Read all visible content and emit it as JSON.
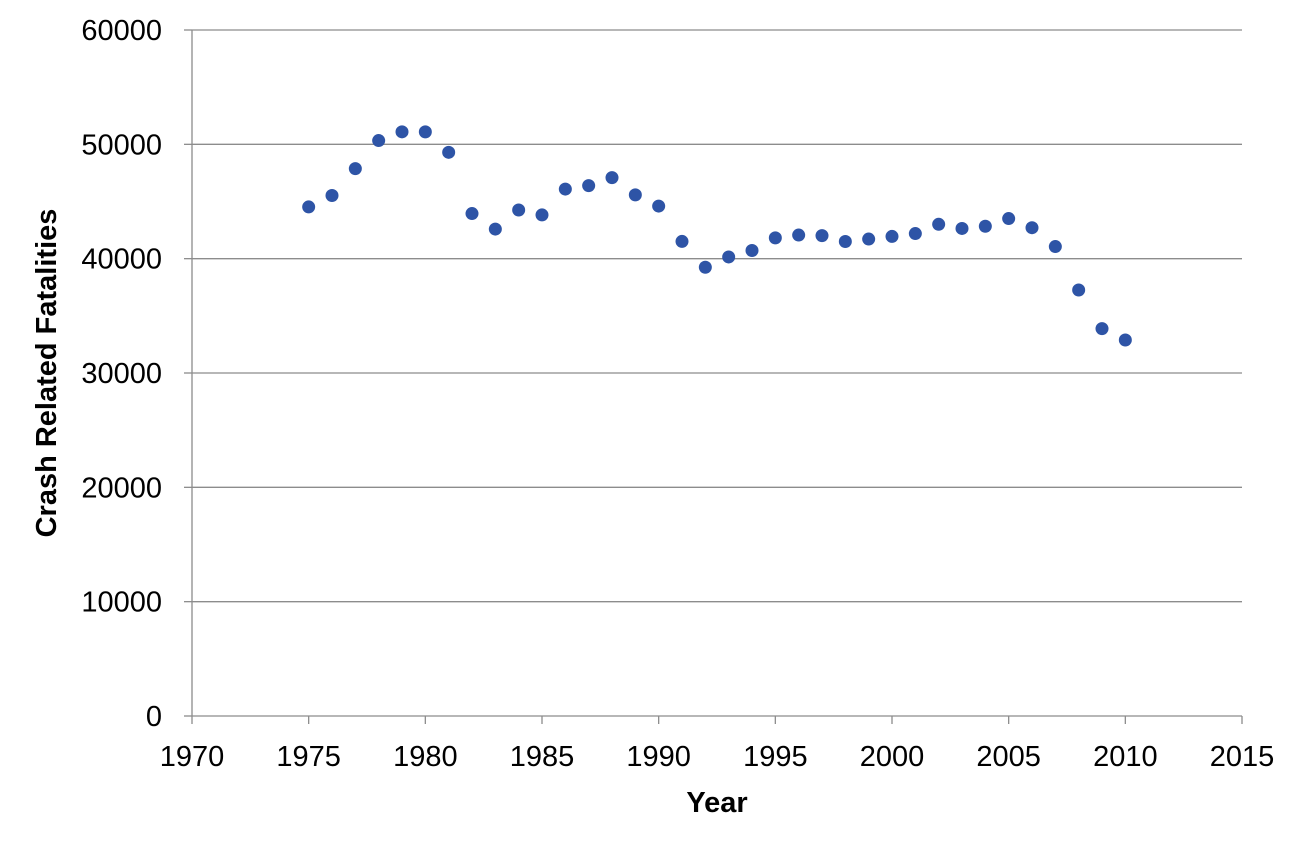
{
  "chart_data": {
    "type": "scatter",
    "title": "",
    "xlabel": "Year",
    "ylabel": "Crash Related Fatalities",
    "xlim": [
      1970,
      2015
    ],
    "ylim": [
      0,
      60000
    ],
    "x_ticks": [
      "1970",
      "1975",
      "1980",
      "1985",
      "1990",
      "1995",
      "2000",
      "2005",
      "2010",
      "2015"
    ],
    "y_ticks": [
      "0",
      "10000",
      "20000",
      "30000",
      "40000",
      "50000",
      "60000"
    ],
    "grid": "horizontal",
    "legend": "none",
    "marker_color": "#2E54A6",
    "series": [
      {
        "x": [
          1975,
          1976,
          1977,
          1978,
          1979,
          1980,
          1981,
          1982,
          1983,
          1984,
          1985,
          1986,
          1987,
          1988,
          1989,
          1990,
          1991,
          1992,
          1993,
          1994,
          1995,
          1996,
          1997,
          1998,
          1999,
          2000,
          2001,
          2002,
          2003,
          2004,
          2005,
          2006,
          2007,
          2008,
          2009,
          2010
        ],
        "y": [
          44525,
          45523,
          47878,
          50331,
          51093,
          51091,
          49301,
          43945,
          42589,
          44257,
          43825,
          46087,
          46390,
          47087,
          45582,
          44599,
          41508,
          39250,
          40150,
          40716,
          41817,
          42065,
          42013,
          41501,
          41717,
          41945,
          42196,
          43005,
          42643,
          42836,
          43510,
          42708,
          41059,
          37261,
          33883,
          32885
        ]
      }
    ]
  }
}
